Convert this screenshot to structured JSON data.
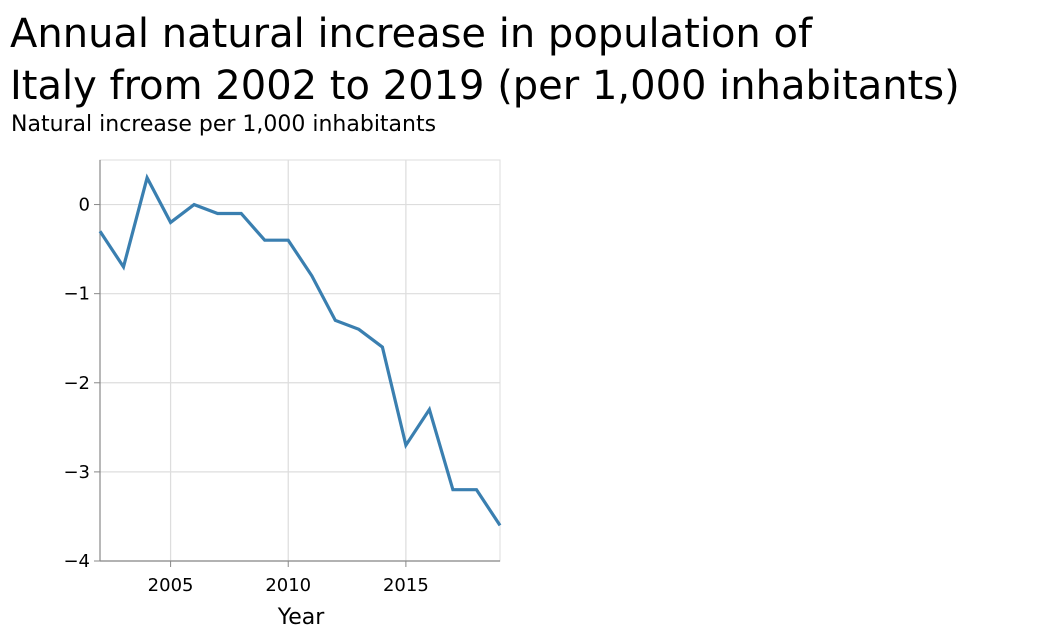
{
  "chart_data": {
    "type": "line",
    "title": "Annual natural increase in population of\nItaly from 2002 to 2019 (per 1,000 inhabitants)",
    "ylabel": "Natural increase per 1,000 inhabitants",
    "xlabel": "Year",
    "xlim": [
      2002,
      2019
    ],
    "ylim": [
      -4,
      0.5
    ],
    "x_ticks": [
      2005,
      2010,
      2015
    ],
    "y_ticks": [
      0,
      -1,
      -2,
      -3,
      -4
    ],
    "y_tick_labels": [
      "0",
      "−1",
      "−2",
      "−3",
      "−4"
    ],
    "grid": true,
    "series": [
      {
        "color": "#3a7fb0",
        "x": [
          2002,
          2003,
          2004,
          2005,
          2006,
          2007,
          2008,
          2009,
          2010,
          2011,
          2012,
          2013,
          2014,
          2015,
          2016,
          2017,
          2018,
          2019
        ],
        "y": [
          -0.3,
          -0.7,
          0.3,
          -0.2,
          0.0,
          -0.1,
          -0.1,
          -0.4,
          -0.4,
          -0.8,
          -1.3,
          -1.4,
          -1.6,
          -2.7,
          -2.3,
          -3.2,
          -3.2,
          -3.6
        ]
      }
    ]
  }
}
